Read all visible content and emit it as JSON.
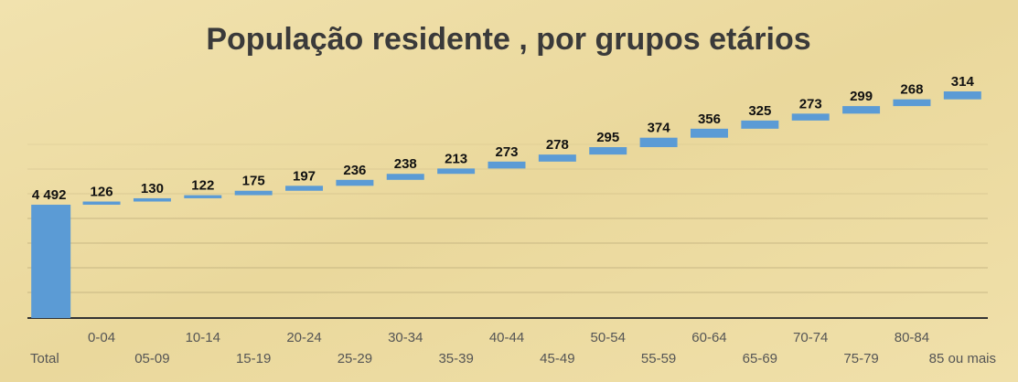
{
  "chart_data": {
    "type": "waterfall",
    "title": "População residente , por grupos etários",
    "categories": [
      "Total",
      "0-04",
      "05-09",
      "10-14",
      "15-19",
      "20-24",
      "25-29",
      "30-34",
      "35-39",
      "40-44",
      "45-49",
      "50-54",
      "55-59",
      "60-64",
      "65-69",
      "70-74",
      "75-79",
      "80-84",
      "85 ou mais"
    ],
    "values": [
      4492,
      126,
      130,
      122,
      175,
      197,
      236,
      238,
      213,
      273,
      278,
      295,
      374,
      356,
      325,
      273,
      299,
      268,
      314
    ],
    "value_labels": [
      "4 492",
      "126",
      "130",
      "122",
      "175",
      "197",
      "236",
      "238",
      "213",
      "273",
      "278",
      "295",
      "374",
      "356",
      "325",
      "273",
      "299",
      "268",
      "314"
    ],
    "color": "#5b9bd5",
    "ylim": [
      0,
      9130
    ]
  }
}
